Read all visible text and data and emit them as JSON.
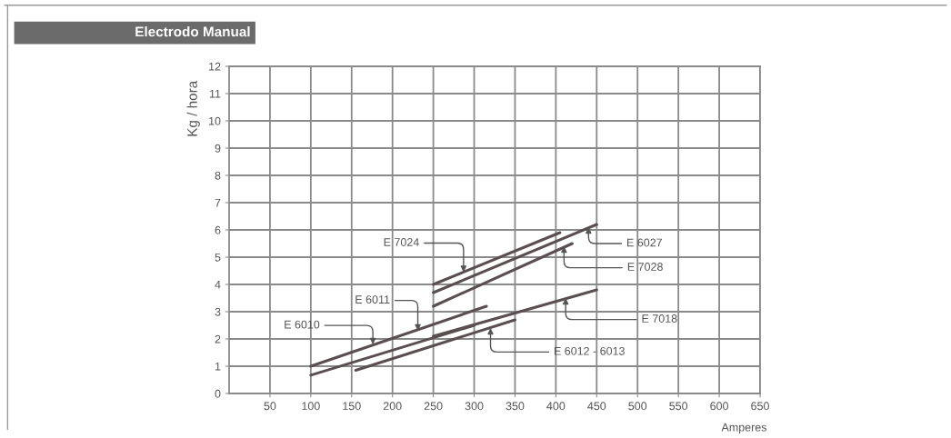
{
  "chart_data": {
    "type": "line",
    "title": "Electrodo Manual",
    "xlabel": "Amperes",
    "ylabel": "Kg / hora",
    "xlim": [
      0,
      650
    ],
    "ylim": [
      0,
      12
    ],
    "xticks": [
      50,
      100,
      150,
      200,
      250,
      300,
      350,
      400,
      450,
      500,
      550,
      600,
      650
    ],
    "yticks": [
      0,
      1,
      2,
      3,
      4,
      5,
      6,
      7,
      8,
      9,
      10,
      11,
      12
    ],
    "grid": true,
    "marker": "none",
    "line_style": "solid",
    "series": [
      {
        "color": "#5a4f50",
        "x": [
          100,
          315
        ],
        "values": [
          1.0,
          3.2
        ]
      },
      {
        "color": "#5a4f50",
        "x": [
          100,
          300
        ],
        "values": [
          0.67,
          2.5
        ]
      },
      {
        "color": "#5a4f50",
        "x": [
          155,
          350
        ],
        "values": [
          0.85,
          2.7
        ]
      },
      {
        "color": "#5a4f50",
        "x": [
          250,
          450
        ],
        "values": [
          2.1,
          3.8
        ]
      },
      {
        "color": "#5a4f50",
        "x": [
          250,
          405
        ],
        "values": [
          4.0,
          5.9
        ]
      },
      {
        "color": "#5a4f50",
        "x": [
          250,
          450
        ],
        "values": [
          3.7,
          6.2
        ]
      },
      {
        "color": "#5a4f50",
        "x": [
          250,
          420
        ],
        "values": [
          3.2,
          5.5
        ]
      }
    ],
    "annotations": [
      {
        "text": "E 7024",
        "x": 287,
        "y": 4.45
      },
      {
        "text": "E 6027",
        "x": 440,
        "y": 6.1
      },
      {
        "text": "E 7028",
        "x": 410,
        "y": 5.4
      },
      {
        "text": "E 6011",
        "x": 231,
        "y": 2.3
      },
      {
        "text": "E 6010",
        "x": 176,
        "y": 1.8
      },
      {
        "text": "E 7018",
        "x": 412,
        "y": 3.5
      },
      {
        "text": "E 6012 - 6013",
        "x": 320,
        "y": 2.4
      }
    ]
  }
}
